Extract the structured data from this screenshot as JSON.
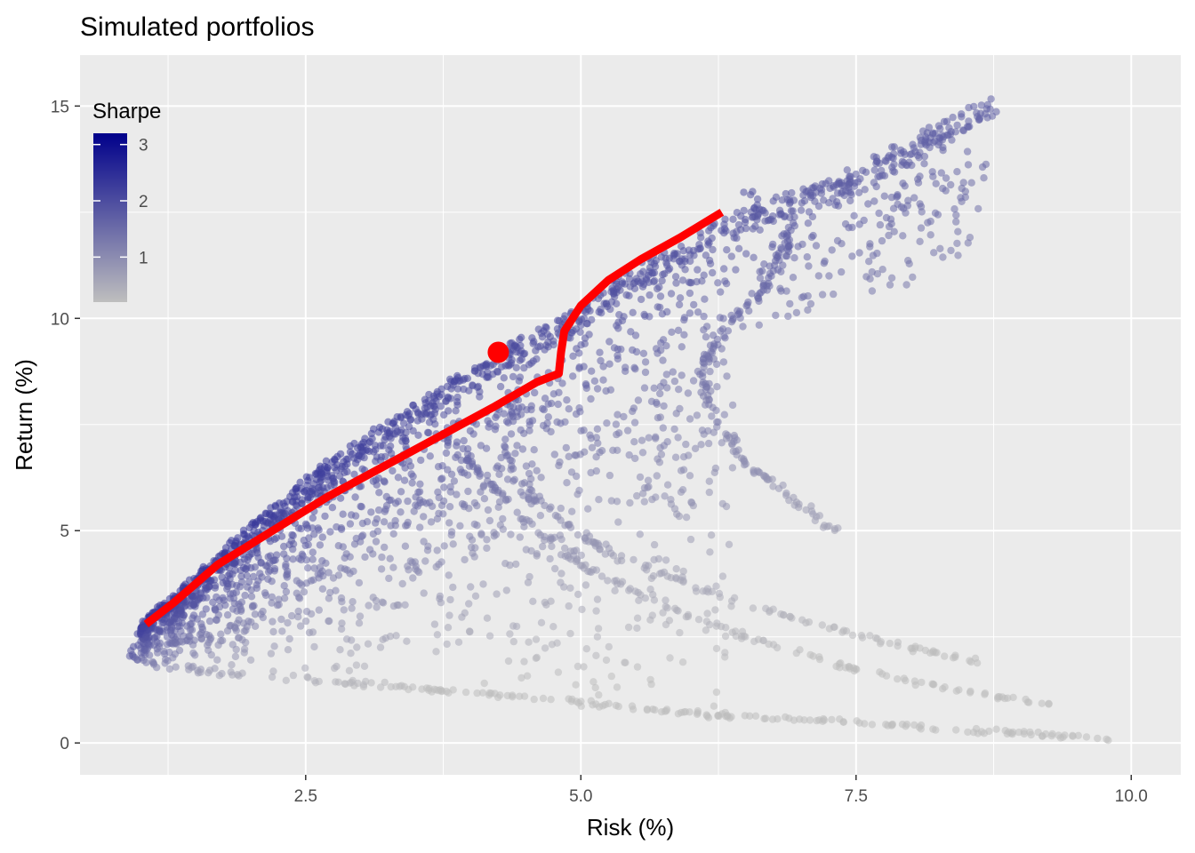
{
  "chart_data": {
    "type": "scatter",
    "title": "Simulated portfolios",
    "xlabel": "Risk (%)",
    "ylabel": "Return (%)",
    "xlim": [
      0.45,
      10.45
    ],
    "ylim": [
      -0.75,
      16.2
    ],
    "x_ticks": [
      2.5,
      5.0,
      7.5,
      10.0
    ],
    "x_tick_labels": [
      "2.5",
      "5.0",
      "7.5",
      "10.0"
    ],
    "y_ticks": [
      0,
      5,
      10,
      15
    ],
    "y_tick_labels": [
      "0",
      "5",
      "10",
      "15"
    ],
    "grid": true,
    "background": "#ebebeb",
    "legend": {
      "title": "Sharpe",
      "placement": "top-left inside",
      "type": "colorbar",
      "low_value": 0.2,
      "high_value": 3.2,
      "low_color": "#bebebe",
      "high_color": "#00008b",
      "ticks": [
        1,
        2,
        3
      ],
      "tick_labels": [
        "1",
        "2",
        "3"
      ]
    },
    "series": [
      {
        "kind": "simulated_portfolios",
        "color_scale": "Sharpe",
        "boundary": {
          "upper_envelope": [
            [
              0.9,
              2.2
            ],
            [
              1.0,
              2.9
            ],
            [
              1.3,
              3.5
            ],
            [
              1.7,
              4.5
            ],
            [
              2.2,
              5.6
            ],
            [
              2.7,
              6.7
            ],
            [
              3.2,
              7.6
            ],
            [
              3.7,
              8.4
            ],
            [
              4.2,
              9.2
            ],
            [
              4.7,
              9.9
            ],
            [
              5.2,
              10.8
            ],
            [
              5.8,
              11.7
            ],
            [
              6.5,
              12.6
            ],
            [
              7.5,
              13.6
            ],
            [
              8.8,
              15.4
            ]
          ],
          "lower_envelope": [
            [
              0.9,
              2.2
            ],
            [
              1.0,
              1.9
            ],
            [
              1.5,
              1.7
            ],
            [
              2.5,
              1.5
            ],
            [
              3.5,
              1.3
            ],
            [
              4.5,
              1.1
            ],
            [
              5.5,
              0.8
            ],
            [
              6.5,
              0.6
            ],
            [
              7.5,
              0.5
            ],
            [
              8.5,
              0.3
            ],
            [
              9.2,
              0.2
            ],
            [
              9.8,
              0.1
            ]
          ],
          "inner_arcs": [
            {
              "points": [
                [
                  6.5,
                  13.0
                ],
                [
                  6.9,
                  11.8
                ],
                [
                  6.7,
                  10.8
                ],
                [
                  6.3,
                  9.8
                ],
                [
                  6.1,
                  8.8
                ],
                [
                  6.2,
                  7.7
                ],
                [
                  6.5,
                  6.6
                ],
                [
                  6.9,
                  5.8
                ],
                [
                  7.3,
                  5.0
                ]
              ]
            },
            {
              "points": [
                [
                  4.4,
                  8.3
                ],
                [
                  4.3,
                  6.8
                ],
                [
                  4.6,
                  5.6
                ],
                [
                  5.2,
                  4.6
                ],
                [
                  6.1,
                  3.6
                ],
                [
                  7.0,
                  2.9
                ],
                [
                  7.9,
                  2.3
                ],
                [
                  8.6,
                  1.9
                ]
              ]
            },
            {
              "points": [
                [
                  3.6,
                  7.9
                ],
                [
                  4.0,
                  6.6
                ],
                [
                  4.5,
                  5.2
                ],
                [
                  5.0,
                  4.2
                ],
                [
                  5.7,
                  3.3
                ],
                [
                  6.5,
                  2.5
                ],
                [
                  7.4,
                  1.8
                ],
                [
                  8.3,
                  1.3
                ],
                [
                  9.3,
                  0.9
                ]
              ]
            }
          ]
        }
      },
      {
        "kind": "efficient_frontier_line",
        "color": "#ff0000",
        "points": [
          [
            1.05,
            2.8
          ],
          [
            1.3,
            3.3
          ],
          [
            1.7,
            4.2
          ],
          [
            2.2,
            5.0
          ],
          [
            2.7,
            5.8
          ],
          [
            3.2,
            6.5
          ],
          [
            3.7,
            7.2
          ],
          [
            4.2,
            7.9
          ],
          [
            4.6,
            8.5
          ],
          [
            4.8,
            8.7
          ],
          [
            4.82,
            9.2
          ],
          [
            4.85,
            9.7
          ],
          [
            5.0,
            10.3
          ],
          [
            5.25,
            10.9
          ],
          [
            5.55,
            11.4
          ],
          [
            5.9,
            11.9
          ],
          [
            6.28,
            12.5
          ]
        ]
      },
      {
        "kind": "highlighted_point",
        "color": "#ff0000",
        "x": 4.25,
        "y": 9.2
      }
    ]
  }
}
